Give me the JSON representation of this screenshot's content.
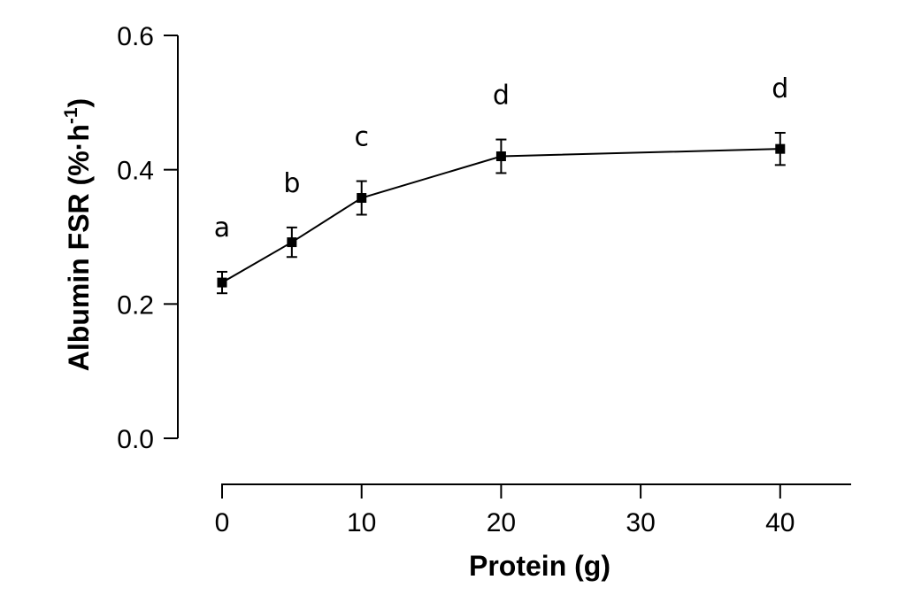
{
  "chart_data": {
    "type": "line",
    "x": [
      0,
      5,
      10,
      20,
      40
    ],
    "series": [
      {
        "values": [
          0.232,
          0.292,
          0.358,
          0.42,
          0.431
        ],
        "error": [
          0.016,
          0.022,
          0.025,
          0.025,
          0.024
        ],
        "group_labels": [
          "a",
          "b",
          "c",
          "d",
          "d"
        ]
      }
    ],
    "xlabel": "Protein (g)",
    "ylabel_main": "Albumin FSR (%·h",
    "ylabel_sup": "-1",
    "ylabel_close": ")",
    "ylim": [
      0,
      0.6
    ],
    "xlim": [
      0,
      45
    ],
    "x_ticks": [
      0,
      10,
      20,
      30,
      40
    ],
    "x_tick_labels": [
      "0",
      "10",
      "20",
      "30",
      "40"
    ],
    "y_ticks": [
      0,
      0.2,
      0.4,
      0.6
    ],
    "y_tick_labels": [
      "0.0",
      "0.2",
      "0.4",
      "0.6"
    ],
    "x_scale": "broken",
    "grid": false,
    "marker": "square",
    "colors": {
      "series": "#000000"
    }
  }
}
